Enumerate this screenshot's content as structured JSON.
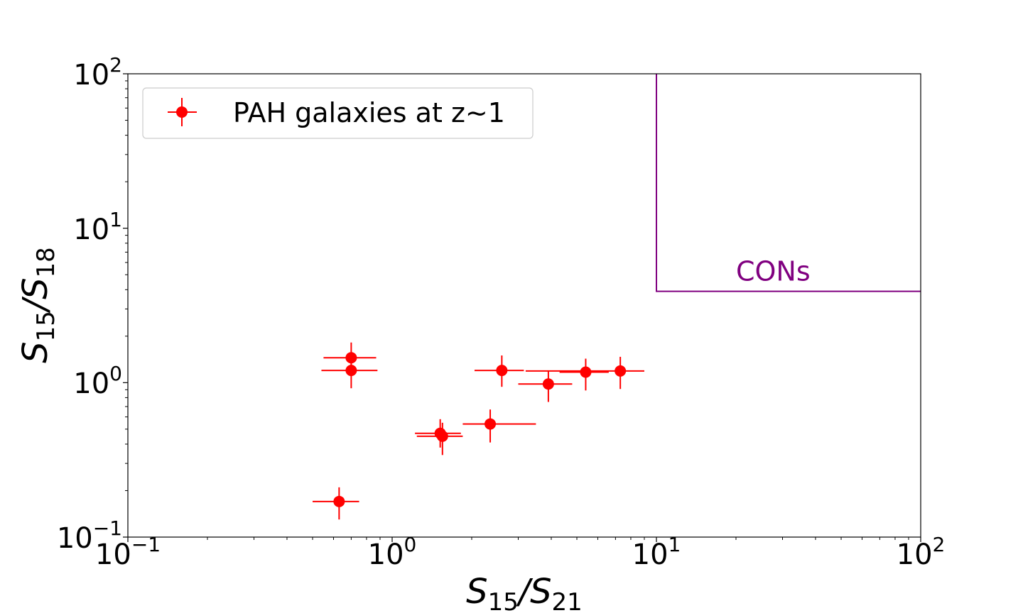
{
  "chart_data": {
    "type": "scatter",
    "xscale": "log",
    "yscale": "log",
    "xlim": [
      0.1,
      100
    ],
    "ylim": [
      0.1,
      100
    ],
    "x_ticks": [
      {
        "base": "10",
        "exp": "−1",
        "value": 0.1
      },
      {
        "base": "10",
        "exp": "0",
        "value": 1
      },
      {
        "base": "10",
        "exp": "1",
        "value": 10
      },
      {
        "base": "10",
        "exp": "2",
        "value": 100
      }
    ],
    "y_ticks": [
      {
        "base": "10",
        "exp": "−1",
        "value": 0.1
      },
      {
        "base": "10",
        "exp": "0",
        "value": 1
      },
      {
        "base": "10",
        "exp": "1",
        "value": 10
      },
      {
        "base": "10",
        "exp": "2",
        "value": 100
      }
    ],
    "xlabel": {
      "main": "S",
      "sub1": "15",
      "sep": "/S",
      "sub2": "21"
    },
    "ylabel": {
      "main": "S",
      "sub1": "15",
      "sep": "/S",
      "sub2": "18"
    },
    "series": [
      {
        "name": "PAH galaxies at z~1",
        "color": "#ff0000",
        "points": [
          {
            "x": 0.63,
            "y": 0.17,
            "xlo": 0.5,
            "xhi": 0.75,
            "ylo": 0.13,
            "yhi": 0.21
          },
          {
            "x": 0.7,
            "y": 1.45,
            "xlo": 0.55,
            "xhi": 0.87,
            "ylo": 1.18,
            "yhi": 1.82
          },
          {
            "x": 0.7,
            "y": 1.2,
            "xlo": 0.54,
            "xhi": 0.88,
            "ylo": 0.92,
            "yhi": 1.5
          },
          {
            "x": 1.52,
            "y": 0.47,
            "xlo": 1.22,
            "xhi": 1.82,
            "ylo": 0.38,
            "yhi": 0.58
          },
          {
            "x": 1.55,
            "y": 0.45,
            "xlo": 1.24,
            "xhi": 1.85,
            "ylo": 0.34,
            "yhi": 0.55
          },
          {
            "x": 2.35,
            "y": 0.54,
            "xlo": 1.85,
            "xhi": 3.5,
            "ylo": 0.41,
            "yhi": 0.67
          },
          {
            "x": 2.6,
            "y": 1.2,
            "xlo": 2.05,
            "xhi": 3.15,
            "ylo": 0.94,
            "yhi": 1.5
          },
          {
            "x": 3.9,
            "y": 0.98,
            "xlo": 3.0,
            "xhi": 4.8,
            "ylo": 0.75,
            "yhi": 1.2
          },
          {
            "x": 5.4,
            "y": 1.17,
            "xlo": 4.3,
            "xhi": 6.6,
            "ylo": 0.89,
            "yhi": 1.43
          },
          {
            "x": 7.3,
            "y": 1.19,
            "xlo": 3.2,
            "xhi": 9.0,
            "ylo": 0.91,
            "yhi": 1.47
          }
        ]
      }
    ],
    "region": {
      "label": "CONs",
      "color": "#800080",
      "x_min": 10,
      "y_min": 3.9,
      "label_x": 20,
      "label_y": 5.3
    },
    "legend": {
      "position": "top-left"
    }
  }
}
